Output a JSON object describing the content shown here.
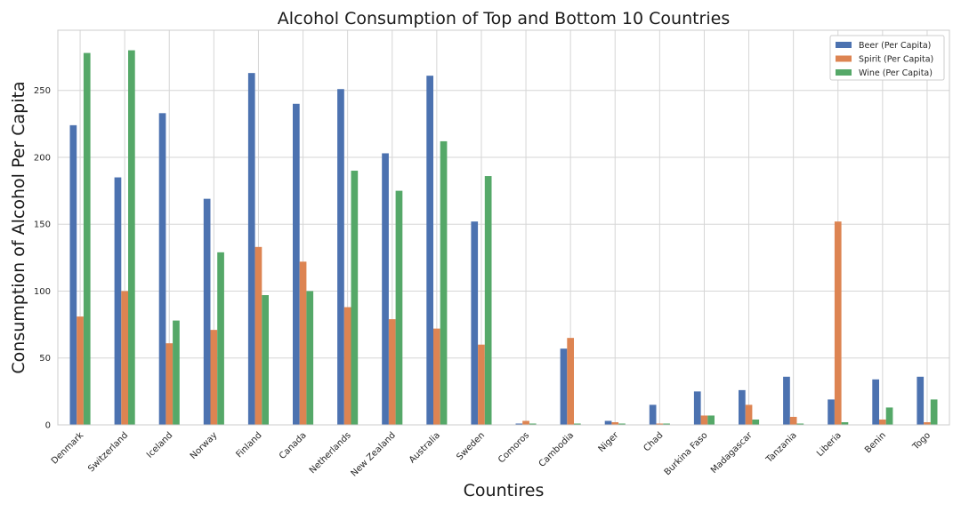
{
  "chart_data": {
    "type": "bar",
    "title": "Alcohol Consumption of Top and Bottom 10 Countries",
    "xlabel": "Countires",
    "ylabel": "Consumption of Alcohol Per Capita",
    "ylim": [
      0,
      295
    ],
    "yticks": [
      0,
      50,
      100,
      150,
      200,
      250
    ],
    "grid": true,
    "legend_position": "top-right",
    "categories": [
      "Denmark",
      "Switzerland",
      "Iceland",
      "Norway",
      "Finland",
      "Canada",
      "Netherlands",
      "New Zealand",
      "Australia",
      "Sweden",
      "Comoros",
      "Cambodia",
      "Niger",
      "Chad",
      "Burkina Faso",
      "Madagascar",
      "Tanzania",
      "Liberia",
      "Benin",
      "Togo"
    ],
    "series": [
      {
        "name": "Beer (Per Capita)",
        "color": "#4c72b0",
        "values": [
          224,
          185,
          233,
          169,
          263,
          240,
          251,
          203,
          261,
          152,
          1,
          57,
          3,
          15,
          25,
          26,
          36,
          19,
          34,
          36
        ]
      },
      {
        "name": "Spirit (Per Capita)",
        "color": "#dd8452",
        "values": [
          81,
          100,
          61,
          71,
          133,
          122,
          88,
          79,
          72,
          60,
          3,
          65,
          2,
          1,
          7,
          15,
          6,
          152,
          4,
          2
        ]
      },
      {
        "name": "Wine (Per Capita)",
        "color": "#55a868",
        "values": [
          278,
          280,
          78,
          129,
          97,
          100,
          190,
          175,
          212,
          186,
          1,
          1,
          1,
          1,
          7,
          4,
          1,
          2,
          13,
          19
        ]
      }
    ]
  }
}
